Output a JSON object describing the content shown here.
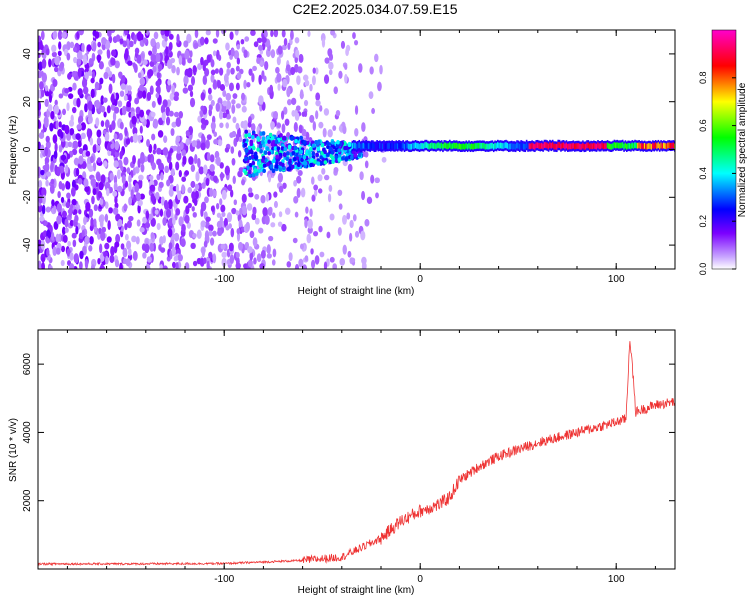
{
  "title": "C2E2.2025.034.07.59.E15",
  "colors": {
    "snr_line": "#ee3333",
    "axis": "#000000",
    "colormap": [
      "#ffffff",
      "#c9a7ff",
      "#7b00ff",
      "#0000ff",
      "#00ffff",
      "#00ff00",
      "#ffff00",
      "#ff0000",
      "#ff00cc"
    ]
  },
  "chart_data": [
    {
      "type": "heatmap",
      "xlabel": "Height of straight line (km)",
      "ylabel": "Frequency (Hz)",
      "xlim": [
        -195,
        130
      ],
      "ylim": [
        -50,
        50
      ],
      "xticks": [
        -100,
        0,
        100
      ],
      "yticks": [
        -40,
        -20,
        0,
        20,
        40
      ],
      "xtick_labels": [
        "-100",
        "0",
        "100"
      ],
      "ytick_labels": [
        "-40",
        "-20",
        "0",
        "20",
        "40"
      ],
      "colorbar": {
        "label": "Normalized spectral amplitude",
        "range": [
          0,
          1
        ],
        "ticks": [
          0.0,
          0.2,
          0.4,
          0.6,
          0.8
        ],
        "tick_labels": [
          "0.0",
          "0.2",
          "0.4",
          "0.6",
          "0.8"
        ]
      },
      "features": {
        "noise_region_x": [
          -195,
          -25
        ],
        "carrier_frequency": 1.5,
        "carrier_start_x": -35,
        "carrier_peak_amplitude": 0.95
      }
    },
    {
      "type": "line",
      "xlabel": "Height of straight line (km)",
      "ylabel": "SNR (10 * v/v)",
      "xlim": [
        -195,
        130
      ],
      "ylim": [
        0,
        7000
      ],
      "xticks": [
        -100,
        0,
        100
      ],
      "yticks": [
        2000,
        4000,
        6000
      ],
      "xtick_labels": [
        "-100",
        "0",
        "100"
      ],
      "ytick_labels": [
        "2000",
        "4000",
        "6000"
      ],
      "series": [
        {
          "x": [
            -195,
            -150,
            -100,
            -60,
            -40,
            -20,
            -10,
            0,
            10,
            15,
            20,
            30,
            40,
            60,
            80,
            100,
            105,
            107,
            110,
            120,
            130
          ],
          "values": [
            150,
            150,
            160,
            250,
            350,
            900,
            1400,
            1700,
            1900,
            2100,
            2600,
            3000,
            3300,
            3700,
            4000,
            4300,
            4400,
            6800,
            4600,
            4800,
            4900
          ]
        }
      ]
    }
  ]
}
